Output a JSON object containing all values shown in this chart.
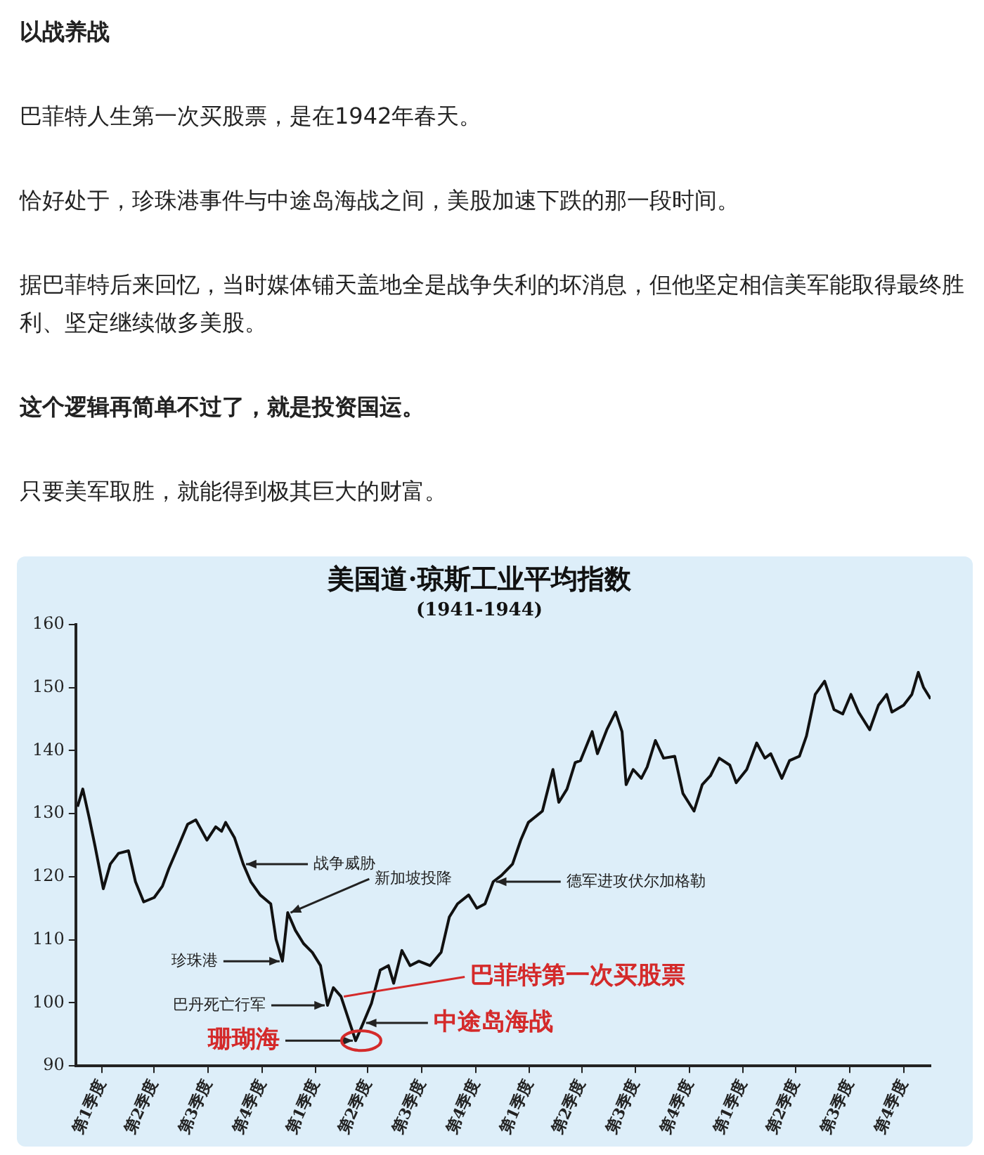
{
  "chart_data": {
    "type": "line",
    "title": "美国道·琼斯工业平均指数",
    "subtitle": "(1941-1944)",
    "annotations": [
      "以战养战",
      "巴菲特人生第一次买股票，是在1942年春天。",
      "恰好处于，珍珠港事件与中途岛海战之间，美股加速下跌的那一段时间。",
      "据巴菲特后来回忆，当时媒体铺天盖地全是战争失利的坏消息，但他坚定相信美军能取得最终胜利、坚定继续做多美股。",
      "这个逻辑再简单不过了，就是投资国运。",
      "只要美军取胜，就能得到极其巨大的财富。",
      {
        "text": "战争威胁",
        "x": "1941-10-14",
        "y": 122
      },
      {
        "text": "新加坡投降",
        "x": "1941-12-29",
        "y": 114.3
      },
      {
        "text": "珍珠港",
        "x": "1941-12-20",
        "y": 106.6
      },
      {
        "text": "巴丹死亡行军",
        "x": "1942-03-07",
        "y": 99.6
      },
      {
        "text": "德军进攻伏尔加格勒",
        "x": "1942-12-15",
        "y": 119.2
      },
      {
        "text": "巴菲特第一次买股票",
        "x": "1942-03-30",
        "y": 101
      },
      {
        "text": "珊瑚海",
        "x": "1942-04-24",
        "y": 94
      },
      {
        "text": "中途岛海战",
        "x": "1942-05-07",
        "y": 96.8
      }
    ],
    "xlim": [
      "1941-01-01",
      "1944-12-31"
    ],
    "xticks": [
      {
        "value": "1941-02-15",
        "label": "第1季度"
      },
      {
        "value": "1941-05-15",
        "label": "第2季度"
      },
      {
        "value": "1941-08-15",
        "label": "第3季度"
      },
      {
        "value": "1941-11-15",
        "label": "第4季度"
      },
      {
        "value": "1942-02-15",
        "label": "第1季度"
      },
      {
        "value": "1942-05-15",
        "label": "第2季度"
      },
      {
        "value": "1942-08-15",
        "label": "第3季度"
      },
      {
        "value": "1942-11-15",
        "label": "第4季度"
      },
      {
        "value": "1943-02-15",
        "label": "第1季度"
      },
      {
        "value": "1943-05-15",
        "label": "第2季度"
      },
      {
        "value": "1943-08-15",
        "label": "第3季度"
      },
      {
        "value": "1943-11-15",
        "label": "第4季度"
      },
      {
        "value": "1944-02-15",
        "label": "第1季度"
      },
      {
        "value": "1944-05-15",
        "label": "第2季度"
      },
      {
        "value": "1944-08-15",
        "label": "第3季度"
      },
      {
        "value": "1944-11-15",
        "label": "第4季度"
      }
    ],
    "ylim": [
      90,
      160
    ],
    "yticks": [
      90,
      100,
      110,
      120,
      130,
      140,
      150,
      160
    ],
    "grid": false,
    "legend": false,
    "marker": "none",
    "line_style": "solid",
    "x": [
      "1941-01-04",
      "1941-01-13",
      "1941-01-24",
      "1941-02-03",
      "1941-02-17",
      "1941-03-01",
      "1941-03-15",
      "1941-04-01",
      "1941-04-13",
      "1941-04-27",
      "1941-05-15",
      "1941-05-29",
      "1941-06-09",
      "1941-06-22",
      "1941-07-11",
      "1941-07-25",
      "1941-08-13",
      "1941-08-28",
      "1941-09-07",
      "1941-09-14",
      "1941-09-29",
      "1941-10-14",
      "1941-10-27",
      "1941-11-12",
      "1941-11-30",
      "1941-12-09",
      "1941-12-20",
      "1941-12-29",
      "1942-01-11",
      "1942-01-25",
      "1942-02-09",
      "1942-02-23",
      "1942-03-07",
      "1942-03-17",
      "1942-03-30",
      "1942-04-14",
      "1942-04-24",
      "1942-05-07",
      "1942-05-21",
      "1942-06-05",
      "1942-06-19",
      "1942-06-28",
      "1942-07-12",
      "1942-07-26",
      "1942-08-10",
      "1942-08-29",
      "1942-09-17",
      "1942-10-01",
      "1942-10-15",
      "1942-11-03",
      "1942-11-17",
      "1942-12-01",
      "1942-12-15",
      "1942-12-29",
      "1943-01-17",
      "1943-01-31",
      "1943-02-13",
      "1943-03-09",
      "1943-03-27",
      "1943-04-06",
      "1943-04-20",
      "1943-05-04",
      "1943-05-13",
      "1943-06-02",
      "1943-06-11",
      "1943-06-27",
      "1943-07-12",
      "1943-07-23",
      "1943-07-30",
      "1943-08-11",
      "1943-08-25",
      "1943-09-04",
      "1943-09-18",
      "1943-10-02",
      "1943-10-21",
      "1943-11-04",
      "1943-11-23",
      "1943-12-07",
      "1943-12-21",
      "1944-01-05",
      "1944-01-23",
      "1944-02-03",
      "1944-02-21",
      "1944-03-09",
      "1944-03-23",
      "1944-04-02",
      "1944-04-21",
      "1944-05-04",
      "1944-05-21",
      "1944-06-02",
      "1944-06-17",
      "1944-07-03",
      "1944-07-19",
      "1944-08-03",
      "1944-08-17",
      "1944-08-30",
      "1944-09-18",
      "1944-10-03",
      "1944-10-17",
      "1944-10-26",
      "1944-11-15",
      "1944-11-29",
      "1944-12-10",
      "1944-12-19",
      "1944-12-31"
    ],
    "series": [
      {
        "color": "#111111",
        "values": [
          131.1,
          133.9,
          129.3,
          124.8,
          118.1,
          122,
          123.7,
          124.1,
          119.2,
          116,
          116.7,
          118.5,
          121.3,
          124.1,
          128.3,
          129,
          125.8,
          127.9,
          127.2,
          128.6,
          126.2,
          122,
          119.2,
          117.1,
          115.7,
          110.1,
          106.6,
          114.3,
          111.5,
          109.4,
          108,
          105.9,
          99.6,
          102.4,
          101,
          96.8,
          94,
          96.8,
          99.9,
          105.2,
          105.9,
          103.1,
          108.3,
          105.9,
          106.6,
          105.9,
          108,
          113.6,
          115.7,
          117.1,
          115,
          115.7,
          119.2,
          120.2,
          122,
          125.8,
          128.6,
          130.4,
          137,
          131.8,
          133.9,
          138.1,
          138.4,
          143,
          139.5,
          143.3,
          146.1,
          143,
          134.6,
          137,
          135.6,
          137.4,
          141.6,
          138.8,
          139.1,
          133.2,
          130.4,
          134.6,
          136,
          138.8,
          137.7,
          134.9,
          137,
          141.2,
          138.8,
          139.5,
          135.6,
          138.4,
          139.1,
          142.3,
          148.9,
          151,
          146.5,
          145.8,
          148.9,
          146.1,
          143.3,
          147.2,
          148.9,
          146.1,
          147.2,
          148.9,
          152.4,
          150,
          148.2
        ]
      }
    ]
  }
}
